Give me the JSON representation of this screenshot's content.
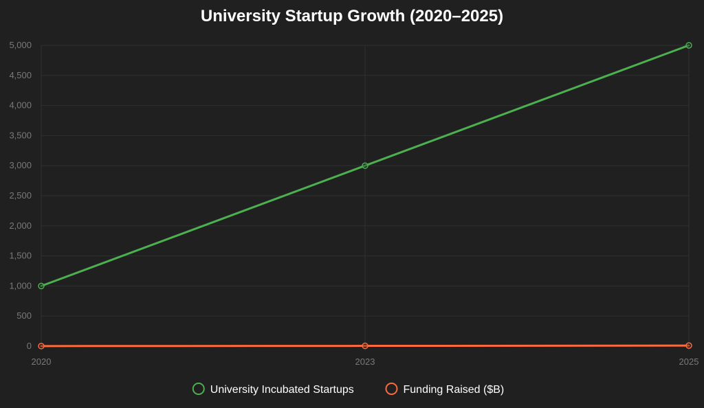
{
  "chart_data": {
    "type": "line",
    "title": "University Startup Growth (2020–2025)",
    "xlabel": "",
    "ylabel": "",
    "x": [
      "2020",
      "2023",
      "2025"
    ],
    "ylim": [
      0,
      5000
    ],
    "y_ticks": [
      0,
      500,
      1000,
      1500,
      2000,
      2500,
      3000,
      3500,
      4000,
      4500,
      5000
    ],
    "y_tick_labels": [
      "0",
      "500",
      "1,000",
      "1,500",
      "2,000",
      "2,500",
      "3,000",
      "3,500",
      "4,000",
      "4,500",
      "5,000"
    ],
    "grid": true,
    "legend_position": "bottom",
    "series": [
      {
        "name": "University Incubated Startups",
        "values": [
          1000,
          3000,
          5000
        ],
        "color": "#4caf50"
      },
      {
        "name": "Funding Raised ($B)",
        "values": [
          2,
          5,
          10
        ],
        "color": "#ff6a3d"
      }
    ]
  },
  "colors": {
    "background": "#202020",
    "grid": "#2f2f2f",
    "tick_text": "#7a7a7a",
    "title_text": "#ffffff"
  }
}
